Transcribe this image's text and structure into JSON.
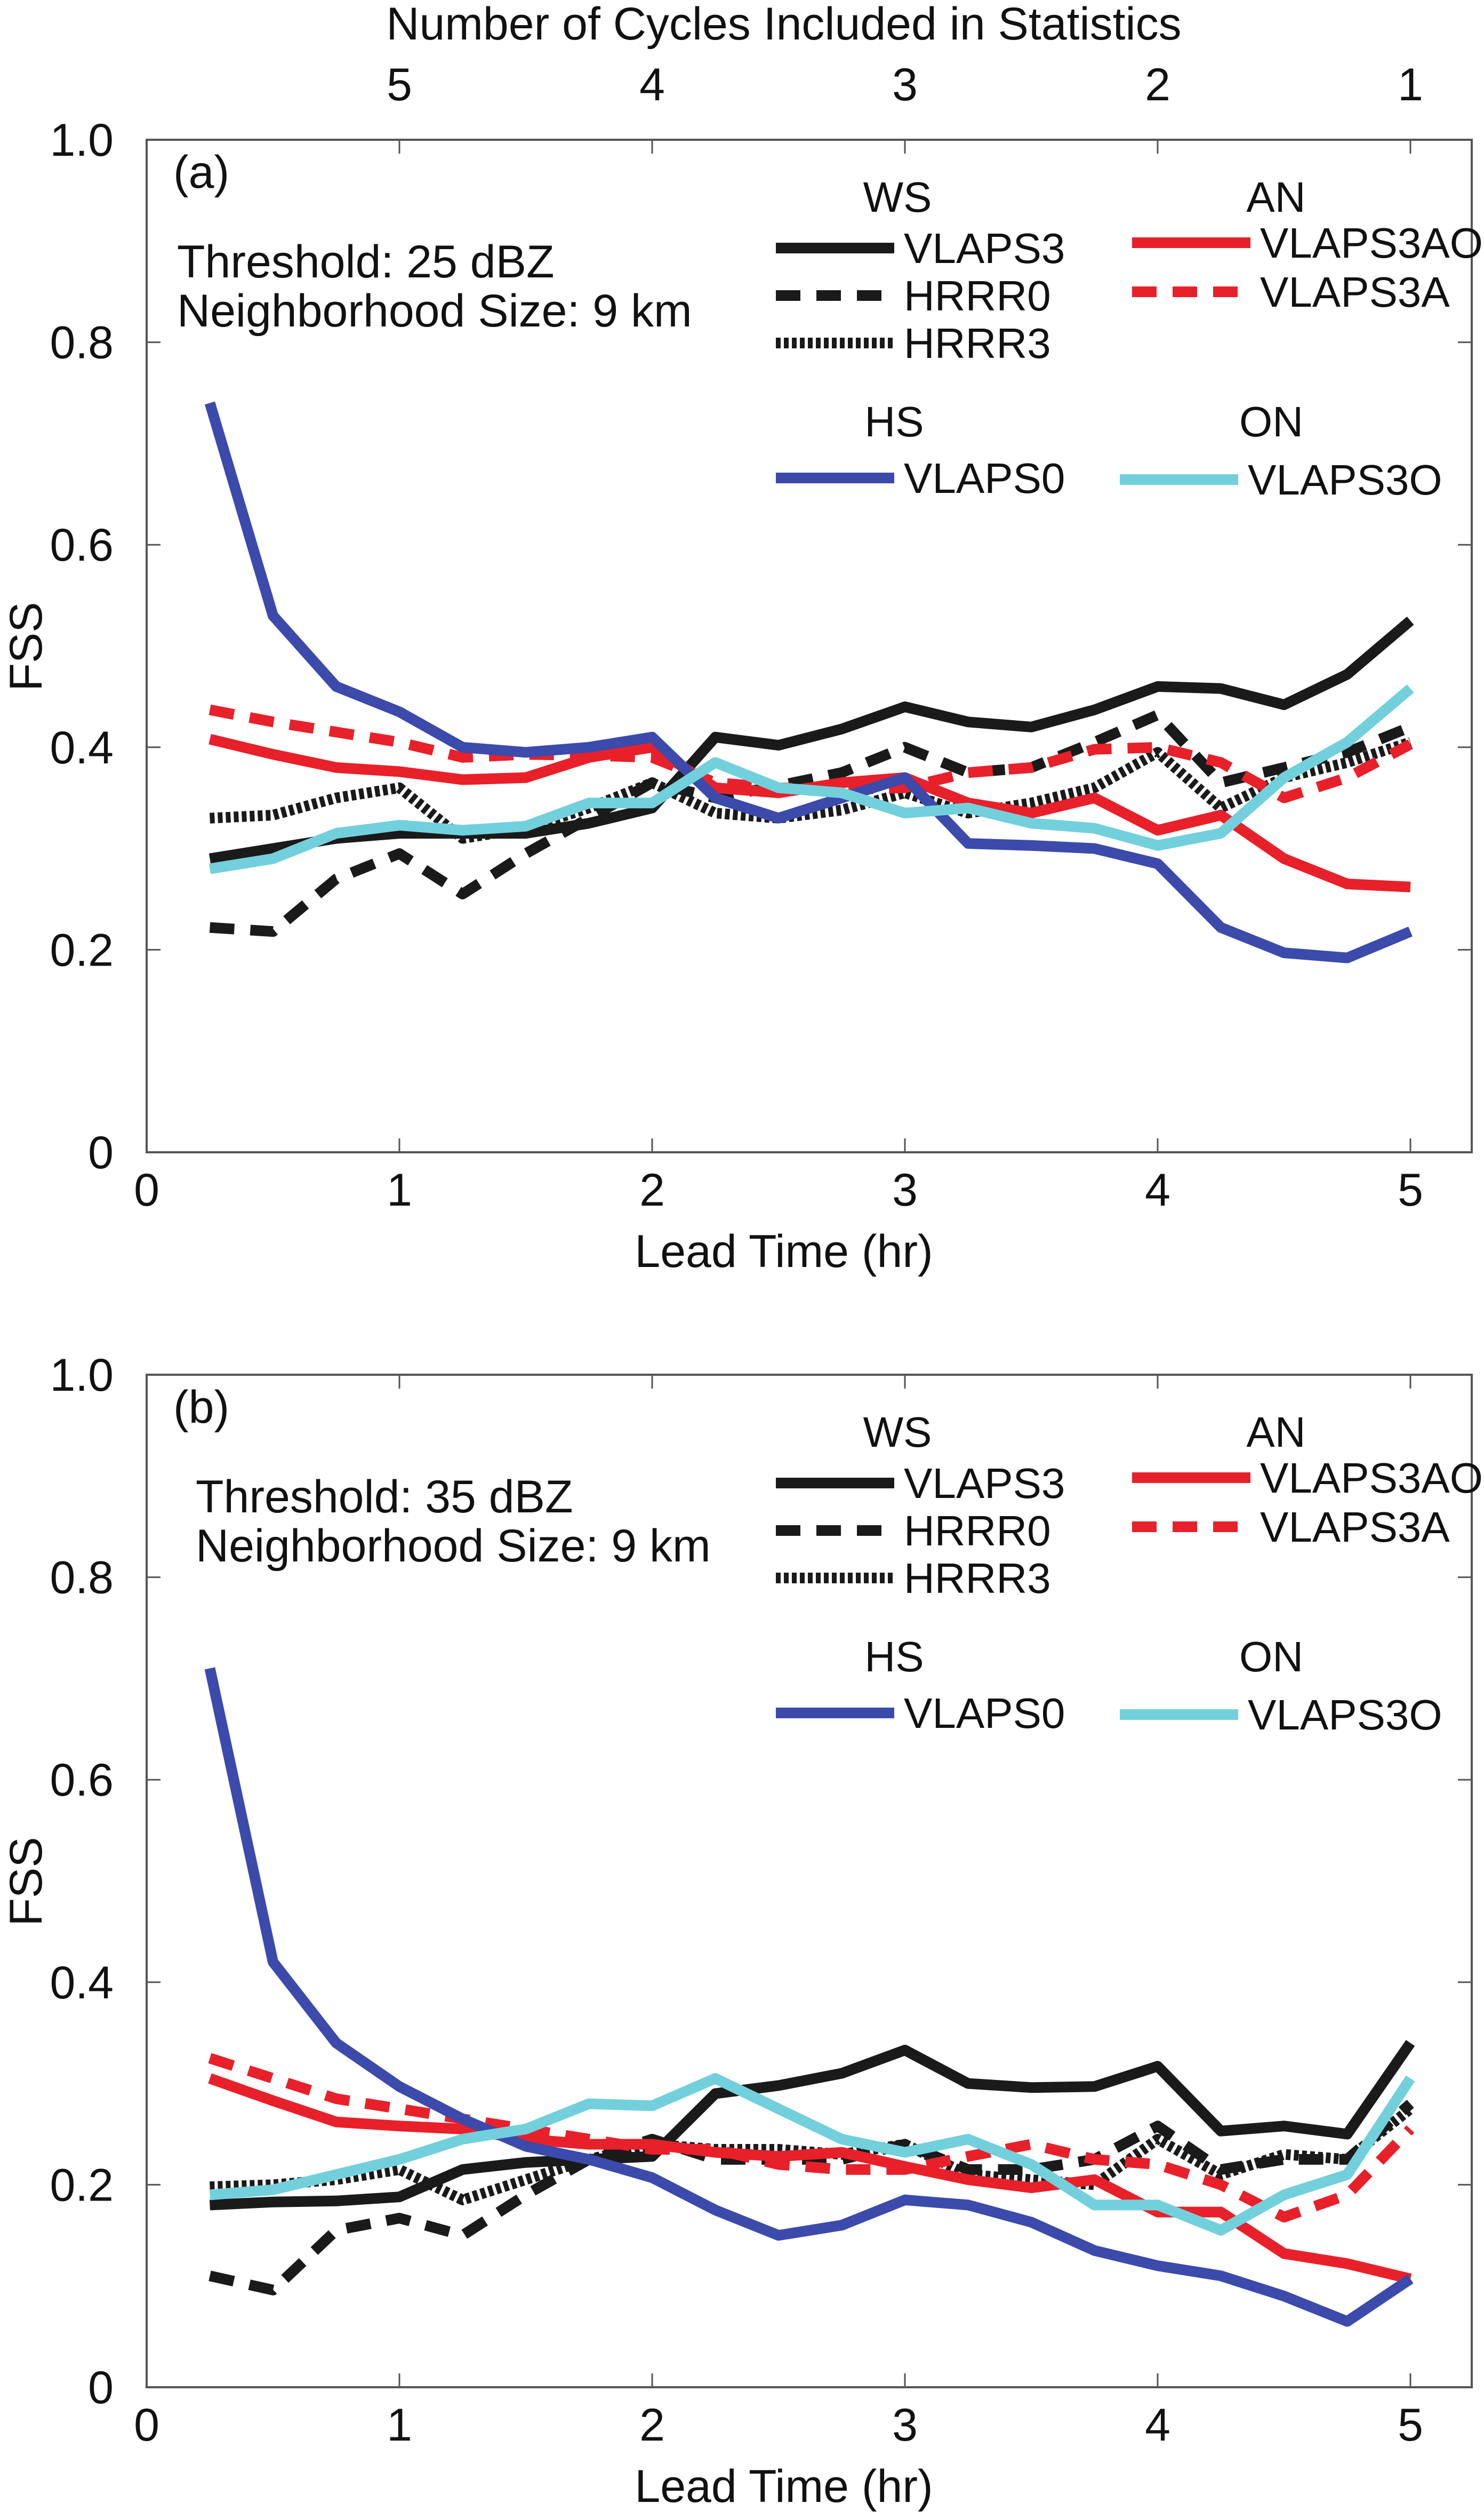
{
  "chart_data": {
    "type": "line",
    "top_axis": {
      "label": "Number of Cycles Included in Statistics",
      "ticks": [
        5,
        4,
        3,
        2,
        1
      ]
    },
    "x": [
      0.25,
      0.5,
      0.75,
      1,
      1.25,
      1.5,
      1.75,
      2,
      2.25,
      2.5,
      2.75,
      3,
      3.25,
      3.5,
      3.75,
      4,
      4.25,
      4.5,
      4.75,
      5
    ],
    "xlabel": "Lead Time (hr)",
    "ylabel": "FSS",
    "xlim": [
      0,
      5
    ],
    "ylim": [
      0,
      1
    ],
    "xticks": [
      0,
      1,
      2,
      3,
      4,
      5
    ],
    "yticks": [
      0,
      0.2,
      0.4,
      0.6,
      0.8,
      1.0
    ],
    "ytick_labels": [
      "0",
      "0.2",
      "0.4",
      "0.6",
      "0.8",
      "1.0"
    ],
    "series_styles": {
      "VLAPS3": {
        "color": "#1a1a1a",
        "dash": "solid"
      },
      "HRRR0": {
        "color": "#1a1a1a",
        "dash": "dashed"
      },
      "HRRR3": {
        "color": "#1a1a1a",
        "dash": "dotted"
      },
      "VLAPS3AO": {
        "color": "#e8202a",
        "dash": "solid"
      },
      "VLAPS3A": {
        "color": "#e8202a",
        "dash": "dashed"
      },
      "VLAPS0": {
        "color": "#3b4aab",
        "dash": "solid"
      },
      "VLAPS3O": {
        "color": "#72d0dc",
        "dash": "solid"
      }
    },
    "legend_groups": [
      {
        "title": "WS",
        "items": [
          "VLAPS3",
          "HRRR0",
          "HRRR3"
        ]
      },
      {
        "title": "AN",
        "items": [
          "VLAPS3AO",
          "VLAPS3A"
        ]
      },
      {
        "title": "HS",
        "items": [
          "VLAPS0"
        ]
      },
      {
        "title": "ON",
        "items": [
          "VLAPS3O"
        ]
      }
    ],
    "panels": [
      {
        "tag": "(a)",
        "threshold": "Threshold: 25 dBZ",
        "neighborhood": "Neighborhood Size: 9 km",
        "series": [
          {
            "name": "VLAPS3",
            "values": [
              0.29,
              0.3,
              0.31,
              0.315,
              0.315,
              0.315,
              0.325,
              0.34,
              0.41,
              0.402,
              0.418,
              0.44,
              0.425,
              0.42,
              0.437,
              0.46,
              0.458,
              0.442,
              0.472,
              0.525
            ]
          },
          {
            "name": "HRRR0",
            "values": [
              0.222,
              0.218,
              0.27,
              0.295,
              0.255,
              0.295,
              0.33,
              0.365,
              0.35,
              0.362,
              0.375,
              0.4,
              0.375,
              0.38,
              0.405,
              0.432,
              0.365,
              0.38,
              0.395,
              0.42
            ]
          },
          {
            "name": "HRRR3",
            "values": [
              0.33,
              0.333,
              0.35,
              0.36,
              0.31,
              0.32,
              0.34,
              0.365,
              0.335,
              0.33,
              0.338,
              0.355,
              0.335,
              0.345,
              0.36,
              0.395,
              0.34,
              0.37,
              0.385,
              0.405
            ]
          },
          {
            "name": "VLAPS3AO",
            "values": [
              0.408,
              0.393,
              0.38,
              0.376,
              0.368,
              0.37,
              0.39,
              0.4,
              0.36,
              0.355,
              0.365,
              0.37,
              0.345,
              0.335,
              0.35,
              0.318,
              0.333,
              0.29,
              0.265,
              0.262
            ]
          },
          {
            "name": "VLAPS3A",
            "values": [
              0.437,
              0.425,
              0.415,
              0.405,
              0.39,
              0.393,
              0.392,
              0.39,
              0.365,
              0.36,
              0.358,
              0.36,
              0.375,
              0.38,
              0.398,
              0.4,
              0.385,
              0.35,
              0.37,
              0.403
            ]
          },
          {
            "name": "VLAPS0",
            "values": [
              0.74,
              0.53,
              0.46,
              0.435,
              0.4,
              0.395,
              0.4,
              0.41,
              0.35,
              0.33,
              0.35,
              0.37,
              0.305,
              0.303,
              0.3,
              0.285,
              0.222,
              0.197,
              0.192,
              0.218
            ]
          },
          {
            "name": "VLAPS3O",
            "values": [
              0.28,
              0.29,
              0.315,
              0.323,
              0.318,
              0.322,
              0.345,
              0.345,
              0.385,
              0.36,
              0.355,
              0.335,
              0.34,
              0.325,
              0.32,
              0.303,
              0.315,
              0.37,
              0.405,
              0.458
            ]
          }
        ]
      },
      {
        "tag": "(b)",
        "threshold": "Threshold: 35 dBZ",
        "neighborhood": "Neighborhood Size: 9 km",
        "series": [
          {
            "name": "VLAPS3",
            "values": [
              0.18,
              0.183,
              0.184,
              0.188,
              0.215,
              0.222,
              0.225,
              0.228,
              0.29,
              0.298,
              0.31,
              0.333,
              0.3,
              0.296,
              0.297,
              0.317,
              0.253,
              0.258,
              0.25,
              0.34
            ]
          },
          {
            "name": "HRRR0",
            "values": [
              0.11,
              0.096,
              0.155,
              0.167,
              0.15,
              0.19,
              0.225,
              0.245,
              0.225,
              0.225,
              0.225,
              0.24,
              0.215,
              0.215,
              0.225,
              0.258,
              0.215,
              0.225,
              0.225,
              0.28
            ]
          },
          {
            "name": "HRRR3",
            "values": [
              0.198,
              0.2,
              0.205,
              0.215,
              0.185,
              0.205,
              0.225,
              0.24,
              0.235,
              0.235,
              0.23,
              0.24,
              0.21,
              0.205,
              0.2,
              0.245,
              0.21,
              0.23,
              0.225,
              0.275
            ]
          },
          {
            "name": "VLAPS3AO",
            "values": [
              0.305,
              0.283,
              0.262,
              0.258,
              0.255,
              0.245,
              0.24,
              0.24,
              0.232,
              0.228,
              0.232,
              0.218,
              0.205,
              0.197,
              0.205,
              0.173,
              0.173,
              0.132,
              0.122,
              0.107
            ]
          },
          {
            "name": "VLAPS3A",
            "values": [
              0.325,
              0.305,
              0.285,
              0.275,
              0.265,
              0.255,
              0.245,
              0.235,
              0.235,
              0.22,
              0.215,
              0.215,
              0.228,
              0.24,
              0.225,
              0.22,
              0.2,
              0.168,
              0.19,
              0.255
            ]
          },
          {
            "name": "VLAPS0",
            "values": [
              0.71,
              0.42,
              0.34,
              0.297,
              0.265,
              0.238,
              0.225,
              0.207,
              0.175,
              0.15,
              0.16,
              0.185,
              0.18,
              0.163,
              0.135,
              0.12,
              0.11,
              0.09,
              0.065,
              0.107
            ]
          },
          {
            "name": "VLAPS3O",
            "values": [
              0.19,
              0.195,
              0.21,
              0.225,
              0.245,
              0.255,
              0.28,
              0.278,
              0.305,
              0.275,
              0.245,
              0.232,
              0.245,
              0.22,
              0.18,
              0.18,
              0.155,
              0.19,
              0.21,
              0.305
            ]
          }
        ]
      }
    ]
  }
}
